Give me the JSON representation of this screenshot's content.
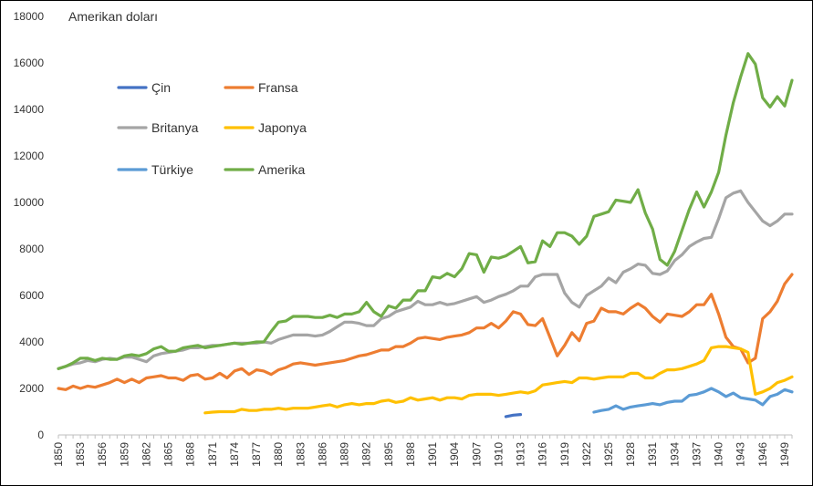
{
  "chart_data": {
    "type": "line",
    "unit_label": "Amerikan doları",
    "ylim": [
      0,
      18000
    ],
    "yticks": [
      0,
      2000,
      4000,
      6000,
      8000,
      10000,
      12000,
      14000,
      16000,
      18000
    ],
    "xlim": [
      1850,
      1950
    ],
    "xticks": [
      1850,
      1853,
      1856,
      1859,
      1862,
      1865,
      1868,
      1871,
      1874,
      1877,
      1880,
      1883,
      1886,
      1889,
      1892,
      1895,
      1898,
      1901,
      1904,
      1907,
      1910,
      1913,
      1916,
      1919,
      1922,
      1925,
      1928,
      1931,
      1934,
      1937,
      1940,
      1943,
      1946,
      1949
    ],
    "grid": false,
    "legend": "inside-upper-left",
    "series": [
      {
        "name": "Çin",
        "color": "#4472c4",
        "x": [
          1911,
          1912,
          1913
        ],
        "y": [
          790,
          850,
          880
        ]
      },
      {
        "name": "Fransa",
        "color": "#ed7d31",
        "x": [
          1850,
          1851,
          1852,
          1853,
          1854,
          1855,
          1856,
          1857,
          1858,
          1859,
          1860,
          1861,
          1862,
          1863,
          1864,
          1865,
          1866,
          1867,
          1868,
          1869,
          1870,
          1871,
          1872,
          1873,
          1874,
          1875,
          1876,
          1877,
          1878,
          1879,
          1880,
          1881,
          1882,
          1883,
          1884,
          1885,
          1886,
          1887,
          1888,
          1889,
          1890,
          1891,
          1892,
          1893,
          1894,
          1895,
          1896,
          1897,
          1898,
          1899,
          1900,
          1901,
          1902,
          1903,
          1904,
          1905,
          1906,
          1907,
          1908,
          1909,
          1910,
          1911,
          1912,
          1913,
          1914,
          1915,
          1916,
          1917,
          1918,
          1919,
          1920,
          1921,
          1922,
          1923,
          1924,
          1925,
          1926,
          1927,
          1928,
          1929,
          1930,
          1931,
          1932,
          1933,
          1934,
          1935,
          1936,
          1937,
          1938,
          1939,
          1940,
          1941,
          1942,
          1943,
          1944,
          1945,
          1946,
          1947,
          1948,
          1949,
          1950
        ],
        "y": [
          2000,
          1950,
          2100,
          2000,
          2100,
          2050,
          2150,
          2250,
          2400,
          2250,
          2400,
          2250,
          2450,
          2500,
          2550,
          2450,
          2450,
          2350,
          2550,
          2600,
          2400,
          2450,
          2650,
          2450,
          2750,
          2850,
          2600,
          2800,
          2750,
          2600,
          2800,
          2900,
          3050,
          3100,
          3050,
          3000,
          3050,
          3100,
          3150,
          3200,
          3300,
          3400,
          3450,
          3550,
          3650,
          3650,
          3800,
          3800,
          3950,
          4150,
          4200,
          4150,
          4100,
          4200,
          4250,
          4300,
          4400,
          4600,
          4600,
          4800,
          4600,
          4900,
          5300,
          5200,
          4750,
          4700,
          5000,
          4200,
          3400,
          3850,
          4400,
          4050,
          4800,
          4900,
          5450,
          5300,
          5300,
          5200,
          5450,
          5650,
          5450,
          5100,
          4850,
          5200,
          5150,
          5100,
          5300,
          5600,
          5600,
          6050,
          5200,
          4200,
          3800,
          3700,
          3100,
          3300,
          5000,
          5300,
          5750,
          6500,
          6900
        ]
      },
      {
        "name": "Britanya",
        "color": "#a5a5a5",
        "x": [
          1850,
          1851,
          1852,
          1853,
          1854,
          1855,
          1856,
          1857,
          1858,
          1859,
          1860,
          1861,
          1862,
          1863,
          1864,
          1865,
          1866,
          1867,
          1868,
          1869,
          1870,
          1871,
          1872,
          1873,
          1874,
          1875,
          1876,
          1877,
          1878,
          1879,
          1880,
          1881,
          1882,
          1883,
          1884,
          1885,
          1886,
          1887,
          1888,
          1889,
          1890,
          1891,
          1892,
          1893,
          1894,
          1895,
          1896,
          1897,
          1898,
          1899,
          1900,
          1901,
          1902,
          1903,
          1904,
          1905,
          1906,
          1907,
          1908,
          1909,
          1910,
          1911,
          1912,
          1913,
          1914,
          1915,
          1916,
          1917,
          1918,
          1919,
          1920,
          1921,
          1922,
          1923,
          1924,
          1925,
          1926,
          1927,
          1928,
          1929,
          1930,
          1931,
          1932,
          1933,
          1934,
          1935,
          1936,
          1937,
          1938,
          1939,
          1940,
          1941,
          1942,
          1943,
          1944,
          1945,
          1946,
          1947,
          1948,
          1949,
          1950
        ],
        "y": [
          2850,
          2950,
          3050,
          3100,
          3200,
          3150,
          3250,
          3300,
          3250,
          3350,
          3350,
          3250,
          3150,
          3400,
          3500,
          3550,
          3600,
          3650,
          3750,
          3750,
          3800,
          3850,
          3850,
          3900,
          3950,
          3950,
          3950,
          3950,
          4000,
          3950,
          4100,
          4200,
          4300,
          4300,
          4300,
          4250,
          4300,
          4450,
          4650,
          4850,
          4850,
          4800,
          4700,
          4700,
          5000,
          5100,
          5300,
          5400,
          5500,
          5750,
          5600,
          5600,
          5700,
          5600,
          5650,
          5750,
          5850,
          5950,
          5700,
          5800,
          5950,
          6050,
          6200,
          6400,
          6400,
          6800,
          6900,
          6900,
          6900,
          6100,
          5700,
          5500,
          6000,
          6200,
          6400,
          6750,
          6550,
          7000,
          7150,
          7350,
          7300,
          6950,
          6900,
          7050,
          7500,
          7750,
          8100,
          8300,
          8450,
          8500,
          9300,
          10200,
          10400,
          10500,
          10000,
          9600,
          9200,
          9000,
          9200,
          9500,
          9500
        ]
      },
      {
        "name": "Japonya",
        "color": "#ffc000",
        "x": [
          1870,
          1871,
          1872,
          1873,
          1874,
          1875,
          1876,
          1877,
          1878,
          1879,
          1880,
          1881,
          1882,
          1883,
          1884,
          1885,
          1886,
          1887,
          1888,
          1889,
          1890,
          1891,
          1892,
          1893,
          1894,
          1895,
          1896,
          1897,
          1898,
          1899,
          1900,
          1901,
          1902,
          1903,
          1904,
          1905,
          1906,
          1907,
          1908,
          1909,
          1910,
          1911,
          1912,
          1913,
          1914,
          1915,
          1916,
          1917,
          1918,
          1919,
          1920,
          1921,
          1922,
          1923,
          1924,
          1925,
          1926,
          1927,
          1928,
          1929,
          1930,
          1931,
          1932,
          1933,
          1934,
          1935,
          1936,
          1937,
          1938,
          1939,
          1940,
          1941,
          1942,
          1943,
          1944,
          1945,
          1946,
          1947,
          1948,
          1949,
          1950
        ],
        "y": [
          950,
          980,
          1000,
          1000,
          1000,
          1100,
          1050,
          1050,
          1100,
          1100,
          1150,
          1100,
          1150,
          1150,
          1150,
          1200,
          1250,
          1300,
          1200,
          1300,
          1350,
          1300,
          1350,
          1350,
          1450,
          1500,
          1400,
          1450,
          1600,
          1500,
          1550,
          1600,
          1500,
          1600,
          1600,
          1550,
          1700,
          1750,
          1750,
          1750,
          1700,
          1750,
          1800,
          1850,
          1800,
          1900,
          2150,
          2200,
          2250,
          2300,
          2250,
          2450,
          2450,
          2400,
          2450,
          2500,
          2500,
          2500,
          2650,
          2650,
          2450,
          2450,
          2650,
          2800,
          2800,
          2850,
          2950,
          3050,
          3200,
          3750,
          3800,
          3800,
          3750,
          3700,
          3550,
          1750,
          1850,
          2000,
          2250,
          2350,
          2500
        ]
      },
      {
        "name": "Türkiye",
        "color": "#5b9bd5",
        "x": [
          1923,
          1924,
          1925,
          1926,
          1927,
          1928,
          1929,
          1930,
          1931,
          1932,
          1933,
          1934,
          1935,
          1936,
          1937,
          1938,
          1939,
          1940,
          1941,
          1942,
          1943,
          1944,
          1945,
          1946,
          1947,
          1948,
          1949,
          1950
        ],
        "y": [
          980,
          1050,
          1100,
          1250,
          1100,
          1200,
          1250,
          1300,
          1350,
          1300,
          1400,
          1450,
          1450,
          1700,
          1750,
          1850,
          2000,
          1850,
          1650,
          1800,
          1600,
          1550,
          1500,
          1300,
          1650,
          1750,
          1950,
          1850
        ]
      },
      {
        "name": "Amerika",
        "color": "#70ad47",
        "x": [
          1850,
          1851,
          1852,
          1853,
          1854,
          1855,
          1856,
          1857,
          1858,
          1859,
          1860,
          1861,
          1862,
          1863,
          1864,
          1865,
          1866,
          1867,
          1868,
          1869,
          1870,
          1871,
          1872,
          1873,
          1874,
          1875,
          1876,
          1877,
          1878,
          1879,
          1880,
          1881,
          1882,
          1883,
          1884,
          1885,
          1886,
          1887,
          1888,
          1889,
          1890,
          1891,
          1892,
          1893,
          1894,
          1895,
          1896,
          1897,
          1898,
          1899,
          1900,
          1901,
          1902,
          1903,
          1904,
          1905,
          1906,
          1907,
          1908,
          1909,
          1910,
          1911,
          1912,
          1913,
          1914,
          1915,
          1916,
          1917,
          1918,
          1919,
          1920,
          1921,
          1922,
          1923,
          1924,
          1925,
          1926,
          1927,
          1928,
          1929,
          1930,
          1931,
          1932,
          1933,
          1934,
          1935,
          1936,
          1937,
          1938,
          1939,
          1940,
          1941,
          1942,
          1943,
          1944,
          1945,
          1946,
          1947,
          1948,
          1949,
          1950
        ],
        "y": [
          2850,
          2950,
          3100,
          3300,
          3300,
          3200,
          3300,
          3250,
          3250,
          3400,
          3450,
          3400,
          3500,
          3700,
          3800,
          3600,
          3600,
          3750,
          3800,
          3850,
          3750,
          3800,
          3850,
          3900,
          3950,
          3900,
          3950,
          4000,
          4000,
          4450,
          4850,
          4900,
          5100,
          5100,
          5100,
          5050,
          5050,
          5150,
          5050,
          5200,
          5200,
          5300,
          5700,
          5300,
          5100,
          5550,
          5450,
          5800,
          5800,
          6200,
          6200,
          6800,
          6750,
          6950,
          6800,
          7150,
          7800,
          7750,
          7000,
          7650,
          7600,
          7700,
          7900,
          8100,
          7400,
          7450,
          8350,
          8100,
          8700,
          8700,
          8550,
          8200,
          8550,
          9400,
          9500,
          9600,
          10100,
          10050,
          10000,
          10550,
          9550,
          8850,
          7550,
          7300,
          7900,
          8800,
          9700,
          10450,
          9800,
          10450,
          11300,
          12900,
          14300,
          15400,
          16400,
          15950,
          14500,
          14100,
          14550,
          14150,
          15250
        ]
      }
    ]
  }
}
